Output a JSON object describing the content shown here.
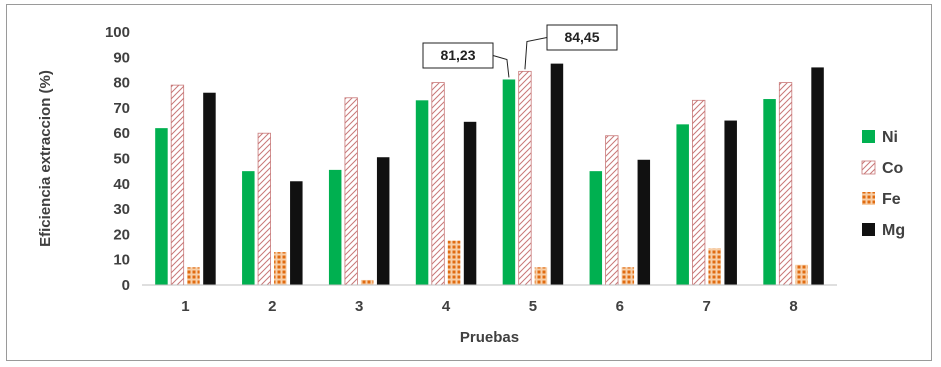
{
  "chart_data": {
    "type": "bar",
    "title": "",
    "xlabel": "Pruebas",
    "ylabel": "Eficiencia extraccion (%)",
    "ylim": [
      0,
      100
    ],
    "yticks": [
      0,
      10,
      20,
      30,
      40,
      50,
      60,
      70,
      80,
      90,
      100
    ],
    "grid": false,
    "legend_position": "right",
    "categories": [
      "1",
      "2",
      "3",
      "4",
      "5",
      "6",
      "7",
      "8"
    ],
    "series": [
      {
        "name": "Ni",
        "color": "#00b050",
        "pattern": "solid",
        "values": [
          62,
          45,
          45.5,
          73,
          81.23,
          45,
          63.5,
          73.5
        ]
      },
      {
        "name": "Co",
        "color": "#e0a0a0",
        "pattern": "hatch",
        "values": [
          79,
          60,
          74,
          80,
          84.45,
          59,
          73,
          80
        ]
      },
      {
        "name": "Fe",
        "color": "#e06b10",
        "pattern": "dots",
        "values": [
          7,
          13,
          2,
          17.5,
          7,
          7,
          14.5,
          8
        ]
      },
      {
        "name": "Mg",
        "color": "#111111",
        "pattern": "solid",
        "values": [
          76,
          41,
          50.5,
          64.5,
          87.5,
          49.5,
          65,
          86
        ]
      }
    ],
    "annotations": [
      {
        "text": "81,23",
        "series": "Ni",
        "category": "5"
      },
      {
        "text": "84,45",
        "series": "Co",
        "category": "5"
      }
    ]
  }
}
